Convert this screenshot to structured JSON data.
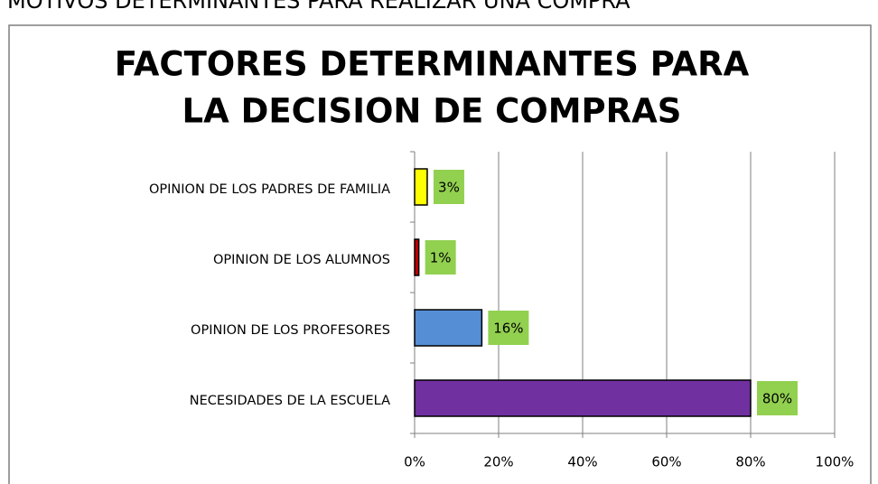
{
  "header": {
    "title": "MOTIVOS DETERMINANTES PARA REALIZAR UNA COMPRA"
  },
  "chart_data": {
    "type": "barh",
    "title": [
      "FACTORES DETERMINANTES PARA",
      "LA DECISION DE COMPRAS"
    ],
    "categories": [
      "OPINION DE LOS PADRES DE FAMILIA",
      "OPINION DE LOS ALUMNOS",
      "OPINION DE LOS PROFESORES",
      "NECESIDADES DE LA ESCUELA"
    ],
    "values": [
      3,
      1,
      16,
      80
    ],
    "value_labels": [
      "3%",
      "1%",
      "16%",
      "80%"
    ],
    "colors": [
      "#ffff00",
      "#c00000",
      "#558ed5",
      "#7030a0"
    ],
    "label_background": "#92d050",
    "xlim": [
      0,
      100
    ],
    "xticks": [
      {
        "value": 0,
        "label": "0%"
      },
      {
        "value": 20,
        "label": "20%"
      },
      {
        "value": 40,
        "label": "40%"
      },
      {
        "value": 60,
        "label": "60%"
      },
      {
        "value": 80,
        "label": "80%"
      },
      {
        "value": 100,
        "label": "100%"
      }
    ],
    "grid": true
  }
}
